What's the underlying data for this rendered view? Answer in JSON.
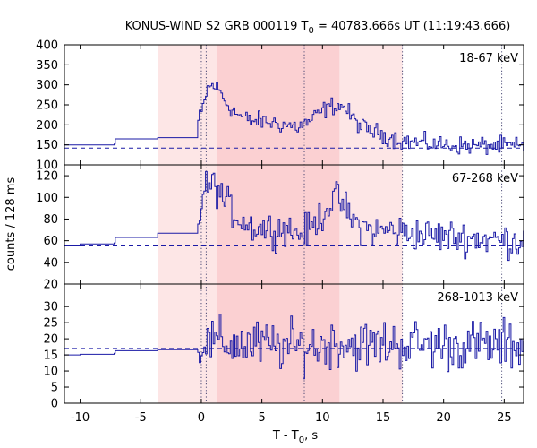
{
  "chart_data": {
    "type": "line",
    "title_prefix": "KONUS-WIND S2 GRB 000119 T",
    "title_sub": "0",
    "title_suffix": " = 40783.666s UT (11:19:43.666)",
    "xlabel_prefix": "T - T",
    "xlabel_sub": "0",
    "xlabel_suffix": ", s",
    "ylabel": "counts / 128 ms",
    "xlim": [
      -11.3,
      26.6
    ],
    "x_ticks": [
      -10,
      -5,
      0,
      5,
      10,
      15,
      20,
      25
    ],
    "x_tick_labels": [
      "-10",
      "-5",
      "0",
      "5",
      "10",
      "15",
      "20",
      "25"
    ],
    "shaded_regions": [
      {
        "x0": -3.6,
        "x1": 16.6,
        "color": "#fde6e6"
      },
      {
        "x0": 1.3,
        "x1": 11.4,
        "color": "#fbd0d2"
      }
    ],
    "vertical_dotted_lines": [
      0.0,
      0.4,
      8.5,
      16.6,
      24.8
    ],
    "line_color": "#1a1aa6",
    "panels": [
      {
        "label": "18-67 keV",
        "ylim": [
          100,
          400
        ],
        "y_ticks": [
          100,
          150,
          200,
          250,
          300,
          350,
          400
        ],
        "y_tick_labels": [
          "100",
          "150",
          "200",
          "250",
          "300",
          "350",
          "400"
        ],
        "background": 142,
        "anchors": [
          [
            -11.3,
            150
          ],
          [
            -10,
            150
          ],
          [
            -7.2,
            152
          ],
          [
            -7.1,
            165
          ],
          [
            -3.6,
            168
          ],
          [
            -0.3,
            205
          ],
          [
            0.0,
            225
          ],
          [
            0.5,
            290
          ],
          [
            1.0,
            300
          ],
          [
            1.5,
            285
          ],
          [
            2.2,
            250
          ],
          [
            3.0,
            225
          ],
          [
            4.0,
            210
          ],
          [
            5.0,
            210
          ],
          [
            6.0,
            205
          ],
          [
            7.0,
            200
          ],
          [
            8.0,
            195
          ],
          [
            9.0,
            210
          ],
          [
            10.0,
            235
          ],
          [
            11.0,
            250
          ],
          [
            11.8,
            245
          ],
          [
            12.5,
            215
          ],
          [
            13.5,
            190
          ],
          [
            14.5,
            180
          ],
          [
            15.5,
            170
          ],
          [
            16.6,
            160
          ],
          [
            18.0,
            155
          ],
          [
            20.0,
            150
          ],
          [
            22.0,
            148
          ],
          [
            24.0,
            148
          ],
          [
            26.6,
            145
          ]
        ],
        "noise": 16,
        "step_start": -0.3
      },
      {
        "label": "67-268 keV",
        "ylim": [
          20,
          130
        ],
        "y_ticks": [
          20,
          40,
          60,
          80,
          100,
          120
        ],
        "y_tick_labels": [
          "20",
          "40",
          "60",
          "80",
          "100",
          "120"
        ],
        "background": 56,
        "anchors": [
          [
            -11.3,
            56
          ],
          [
            -10,
            57
          ],
          [
            -7.2,
            58
          ],
          [
            -7.1,
            63
          ],
          [
            -3.6,
            67
          ],
          [
            -0.3,
            68
          ],
          [
            0.0,
            95
          ],
          [
            0.5,
            112
          ],
          [
            1.2,
            110
          ],
          [
            2.0,
            95
          ],
          [
            3.0,
            82
          ],
          [
            4.0,
            74
          ],
          [
            5.0,
            72
          ],
          [
            6.0,
            70
          ],
          [
            7.0,
            72
          ],
          [
            8.0,
            66
          ],
          [
            9.0,
            70
          ],
          [
            10.0,
            85
          ],
          [
            11.0,
            100
          ],
          [
            11.6,
            95
          ],
          [
            12.5,
            78
          ],
          [
            13.5,
            72
          ],
          [
            14.5,
            68
          ],
          [
            15.5,
            70
          ],
          [
            16.6,
            68
          ],
          [
            18.0,
            66
          ],
          [
            20.0,
            64
          ],
          [
            22.0,
            63
          ],
          [
            24.0,
            61
          ],
          [
            26.6,
            60
          ]
        ],
        "noise": 11,
        "step_start": -0.3
      },
      {
        "label": "268-1013 keV",
        "ylim": [
          0,
          37
        ],
        "y_ticks": [
          0,
          5,
          10,
          15,
          20,
          25,
          30
        ],
        "y_tick_labels": [
          "0",
          "5",
          "10",
          "15",
          "20",
          "25",
          "30"
        ],
        "background": 17,
        "anchors": [
          [
            -11.3,
            15
          ],
          [
            -10,
            15.2
          ],
          [
            -7.2,
            15.5
          ],
          [
            -7.1,
            16.3
          ],
          [
            -3.6,
            16.6
          ],
          [
            -0.3,
            17
          ],
          [
            0.0,
            19
          ],
          [
            2.0,
            18.5
          ],
          [
            5.0,
            18
          ],
          [
            8.0,
            17.5
          ],
          [
            10.0,
            18
          ],
          [
            11.0,
            19
          ],
          [
            13.0,
            18
          ],
          [
            16.6,
            18.5
          ],
          [
            20.0,
            18
          ],
          [
            23.0,
            18
          ],
          [
            26.6,
            18
          ]
        ],
        "noise": 5.5,
        "step_start": -0.3
      }
    ]
  }
}
